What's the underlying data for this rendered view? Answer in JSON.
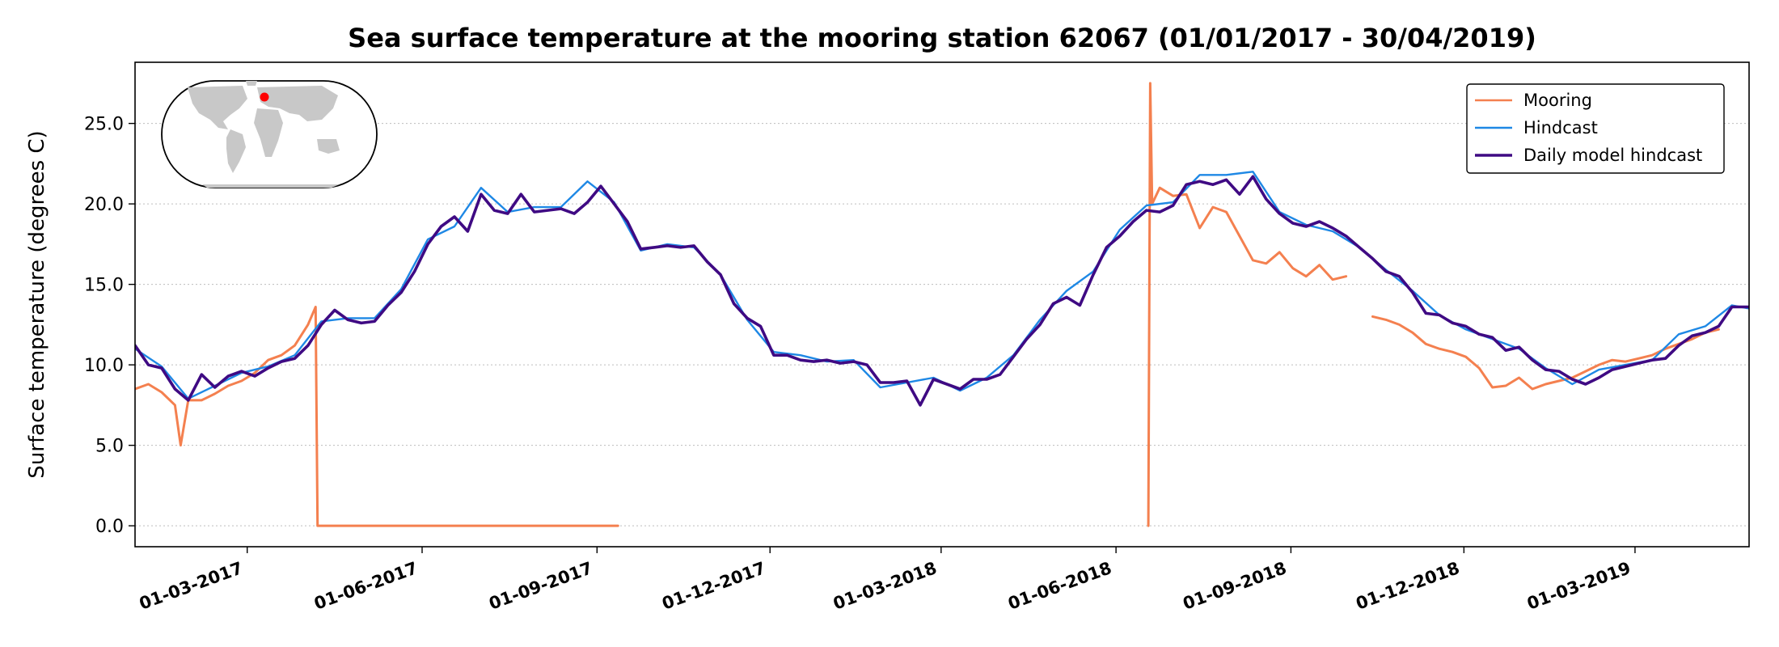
{
  "chart_data": {
    "type": "line",
    "title": "Sea surface temperature at the mooring station 62067 (01/01/2017 - 30/04/2019)",
    "xlabel": "",
    "ylabel": "Surface temperature (degrees C)",
    "xlim": [
      "2017-01-01",
      "2019-04-30"
    ],
    "ylim": [
      -1.3,
      28.8
    ],
    "y_ticks": [
      "0.0",
      "5.0",
      "10.0",
      "15.0",
      "20.0",
      "25.0"
    ],
    "x_ticks": [
      "01-03-2017",
      "01-06-2017",
      "01-09-2017",
      "01-12-2017",
      "01-03-2018",
      "01-06-2018",
      "01-09-2018",
      "01-12-2018",
      "01-03-2019"
    ],
    "grid": "horizontal dotted",
    "legend_position": "top-right",
    "inset": "world map with red marker at station location",
    "colors": {
      "mooring": "#f4804f",
      "hindcast": "#1e88e5",
      "daily": "#3f0a83"
    },
    "legend": [
      "Mooring",
      "Hindcast",
      "Daily model hindcast"
    ],
    "series": [
      {
        "name": "Daily model hindcast",
        "x": [
          "2017-01-01",
          "2017-01-08",
          "2017-01-15",
          "2017-01-22",
          "2017-01-29",
          "2017-02-05",
          "2017-02-12",
          "2017-02-19",
          "2017-02-26",
          "2017-03-05",
          "2017-03-12",
          "2017-03-19",
          "2017-03-26",
          "2017-04-02",
          "2017-04-09",
          "2017-04-16",
          "2017-04-23",
          "2017-04-30",
          "2017-05-07",
          "2017-05-14",
          "2017-05-21",
          "2017-05-28",
          "2017-06-04",
          "2017-06-11",
          "2017-06-18",
          "2017-06-25",
          "2017-07-02",
          "2017-07-09",
          "2017-07-16",
          "2017-07-23",
          "2017-07-30",
          "2017-08-06",
          "2017-08-13",
          "2017-08-20",
          "2017-08-27",
          "2017-09-03",
          "2017-09-10",
          "2017-09-17",
          "2017-09-24",
          "2017-10-01",
          "2017-10-08",
          "2017-10-15",
          "2017-10-22",
          "2017-10-29",
          "2017-11-05",
          "2017-11-12",
          "2017-11-19",
          "2017-11-26",
          "2017-12-03",
          "2017-12-10",
          "2017-12-17",
          "2017-12-24",
          "2017-12-31",
          "2018-01-07",
          "2018-01-14",
          "2018-01-21",
          "2018-01-28",
          "2018-02-04",
          "2018-02-11",
          "2018-02-18",
          "2018-02-25",
          "2018-03-04",
          "2018-03-11",
          "2018-03-18",
          "2018-03-25",
          "2018-04-01",
          "2018-04-08",
          "2018-04-15",
          "2018-04-22",
          "2018-04-29",
          "2018-05-06",
          "2018-05-13",
          "2018-05-20",
          "2018-05-27",
          "2018-06-03",
          "2018-06-10",
          "2018-06-17",
          "2018-06-24",
          "2018-07-01",
          "2018-07-08",
          "2018-07-15",
          "2018-07-22",
          "2018-07-29",
          "2018-08-05",
          "2018-08-12",
          "2018-08-19",
          "2018-08-26",
          "2018-09-02",
          "2018-09-09",
          "2018-09-16",
          "2018-09-23",
          "2018-09-30",
          "2018-10-07",
          "2018-10-14",
          "2018-10-21",
          "2018-10-28",
          "2018-11-04",
          "2018-11-11",
          "2018-11-18",
          "2018-11-25",
          "2018-12-02",
          "2018-12-09",
          "2018-12-16",
          "2018-12-23",
          "2018-12-30",
          "2019-01-06",
          "2019-01-13",
          "2019-01-20",
          "2019-01-27",
          "2019-02-03",
          "2019-02-10",
          "2019-02-17",
          "2019-02-24",
          "2019-03-03",
          "2019-03-10",
          "2019-03-17",
          "2019-03-24",
          "2019-03-31",
          "2019-04-07",
          "2019-04-14",
          "2019-04-21",
          "2019-04-30"
        ],
        "y": [
          11.2,
          10.0,
          9.8,
          8.5,
          7.8,
          9.4,
          8.6,
          9.3,
          9.6,
          9.3,
          9.8,
          10.2,
          10.4,
          11.2,
          12.5,
          13.4,
          12.8,
          12.6,
          12.7,
          13.7,
          14.5,
          15.8,
          17.5,
          18.6,
          19.2,
          18.3,
          20.6,
          19.6,
          19.4,
          20.6,
          19.5,
          19.6,
          19.7,
          19.4,
          20.1,
          21.1,
          20.0,
          18.9,
          17.2,
          17.3,
          17.4,
          17.3,
          17.4,
          16.4,
          15.6,
          13.8,
          12.9,
          12.4,
          10.6,
          10.6,
          10.3,
          10.2,
          10.3,
          10.1,
          10.2,
          10.0,
          8.9,
          8.9,
          9.0,
          7.5,
          9.1,
          8.8,
          8.5,
          9.1,
          9.1,
          9.4,
          10.5,
          11.6,
          12.5,
          13.8,
          14.2,
          13.7,
          15.6,
          17.3,
          18.0,
          18.9,
          19.6,
          19.5,
          19.9,
          21.2,
          21.4,
          21.2,
          21.5,
          20.6,
          21.7,
          20.3,
          19.4,
          18.8,
          18.6,
          18.9,
          18.5,
          18.0,
          17.3,
          16.6,
          15.8,
          15.5,
          14.5,
          13.2,
          13.1,
          12.6,
          12.4,
          11.9,
          11.7,
          10.9,
          11.1,
          10.3,
          9.7,
          9.6,
          9.1,
          8.8,
          9.2,
          9.7,
          9.9,
          10.1,
          10.3,
          10.4,
          11.2,
          11.8,
          12.0,
          12.4,
          13.6,
          13.6
        ]
      },
      {
        "name": "Hindcast",
        "x": [
          "2017-01-01",
          "2017-01-15",
          "2017-01-29",
          "2017-02-12",
          "2017-02-26",
          "2017-03-12",
          "2017-03-26",
          "2017-04-09",
          "2017-04-23",
          "2017-05-07",
          "2017-05-21",
          "2017-06-04",
          "2017-06-18",
          "2017-07-02",
          "2017-07-16",
          "2017-07-30",
          "2017-08-13",
          "2017-08-27",
          "2017-09-10",
          "2017-09-24",
          "2017-10-08",
          "2017-10-22",
          "2017-11-05",
          "2017-11-19",
          "2017-12-03",
          "2017-12-17",
          "2017-12-31",
          "2018-01-14",
          "2018-01-28",
          "2018-02-11",
          "2018-02-25",
          "2018-03-11",
          "2018-03-25",
          "2018-04-08",
          "2018-04-22",
          "2018-05-06",
          "2018-05-20",
          "2018-06-03",
          "2018-06-17",
          "2018-07-01",
          "2018-07-15",
          "2018-07-29",
          "2018-08-12",
          "2018-08-26",
          "2018-09-09",
          "2018-09-23",
          "2018-10-07",
          "2018-10-21",
          "2018-11-04",
          "2018-11-18",
          "2018-12-02",
          "2018-12-16",
          "2018-12-30",
          "2019-01-13",
          "2019-01-27",
          "2019-02-10",
          "2019-02-24",
          "2019-03-10",
          "2019-03-24",
          "2019-04-07",
          "2019-04-21",
          "2019-04-30"
        ],
        "y": [
          11.0,
          9.9,
          7.9,
          8.7,
          9.5,
          9.9,
          10.6,
          12.7,
          12.9,
          12.9,
          14.7,
          17.8,
          18.6,
          21.0,
          19.5,
          19.8,
          19.8,
          21.4,
          20.1,
          17.1,
          17.5,
          17.3,
          15.6,
          12.8,
          10.8,
          10.6,
          10.2,
          10.3,
          8.6,
          8.9,
          9.2,
          8.4,
          9.2,
          10.6,
          12.8,
          14.6,
          15.8,
          18.4,
          19.9,
          20.1,
          21.8,
          21.8,
          22.0,
          19.5,
          18.7,
          18.3,
          17.3,
          15.9,
          14.6,
          13.1,
          12.2,
          11.6,
          11.0,
          9.8,
          8.8,
          9.7,
          10.0,
          10.3,
          11.9,
          12.4,
          13.7,
          13.5
        ]
      },
      {
        "name": "Mooring",
        "x": [
          "2017-01-01",
          "2017-01-08",
          "2017-01-15",
          "2017-01-22",
          "2017-01-25",
          "2017-01-29",
          "2017-02-05",
          "2017-02-12",
          "2017-02-19",
          "2017-02-26",
          "2017-03-05",
          "2017-03-12",
          "2017-03-19",
          "2017-03-26",
          "2017-04-02",
          "2017-04-06",
          "2017-04-07",
          "2017-09-12",
          "2017-09-16",
          "2017-11-25",
          "2017-11-30",
          "2018-01-28",
          "2018-02-01",
          "2018-06-18",
          "2018-06-19",
          "2018-06-20",
          "2018-06-24",
          "2018-07-01",
          "2018-07-08",
          "2018-07-15",
          "2018-07-22",
          "2018-07-29",
          "2018-08-05",
          "2018-08-12",
          "2018-08-19",
          "2018-08-26",
          "2018-09-02",
          "2018-09-09",
          "2018-09-16",
          "2018-09-23",
          "2018-09-30",
          "2018-10-07",
          "2018-10-14",
          "2018-10-21",
          "2018-10-28",
          "2018-11-04",
          "2018-11-11",
          "2018-11-18",
          "2018-11-25",
          "2018-12-02",
          "2018-12-09",
          "2018-12-16",
          "2018-12-23",
          "2018-12-30",
          "2019-01-06",
          "2019-01-13",
          "2019-01-20",
          "2019-01-27",
          "2019-02-03",
          "2019-02-10",
          "2019-02-17",
          "2019-02-24",
          "2019-03-03",
          "2019-03-10",
          "2019-03-17",
          "2019-03-24",
          "2019-03-31",
          "2019-04-07",
          "2019-04-14"
        ],
        "y": [
          8.5,
          8.8,
          8.3,
          7.5,
          5.0,
          7.8,
          7.8,
          8.2,
          8.7,
          9.0,
          9.5,
          10.3,
          10.6,
          11.2,
          12.5,
          13.6,
          0.0,
          0.0,
          null,
          0.0,
          null,
          0.0,
          null,
          0.0,
          27.5,
          20.0,
          21.0,
          20.5,
          20.6,
          18.5,
          19.8,
          19.5,
          18.0,
          16.5,
          16.3,
          17.0,
          16.0,
          15.5,
          16.2,
          15.3,
          15.5,
          null,
          13.0,
          12.8,
          12.5,
          12.0,
          11.3,
          11.0,
          10.8,
          10.5,
          9.8,
          8.6,
          8.7,
          9.2,
          8.5,
          8.8,
          9.0,
          9.2,
          9.6,
          10.0,
          10.3,
          10.2,
          10.4,
          10.6,
          11.0,
          11.3,
          11.6,
          12.0,
          12.2
        ]
      }
    ]
  }
}
